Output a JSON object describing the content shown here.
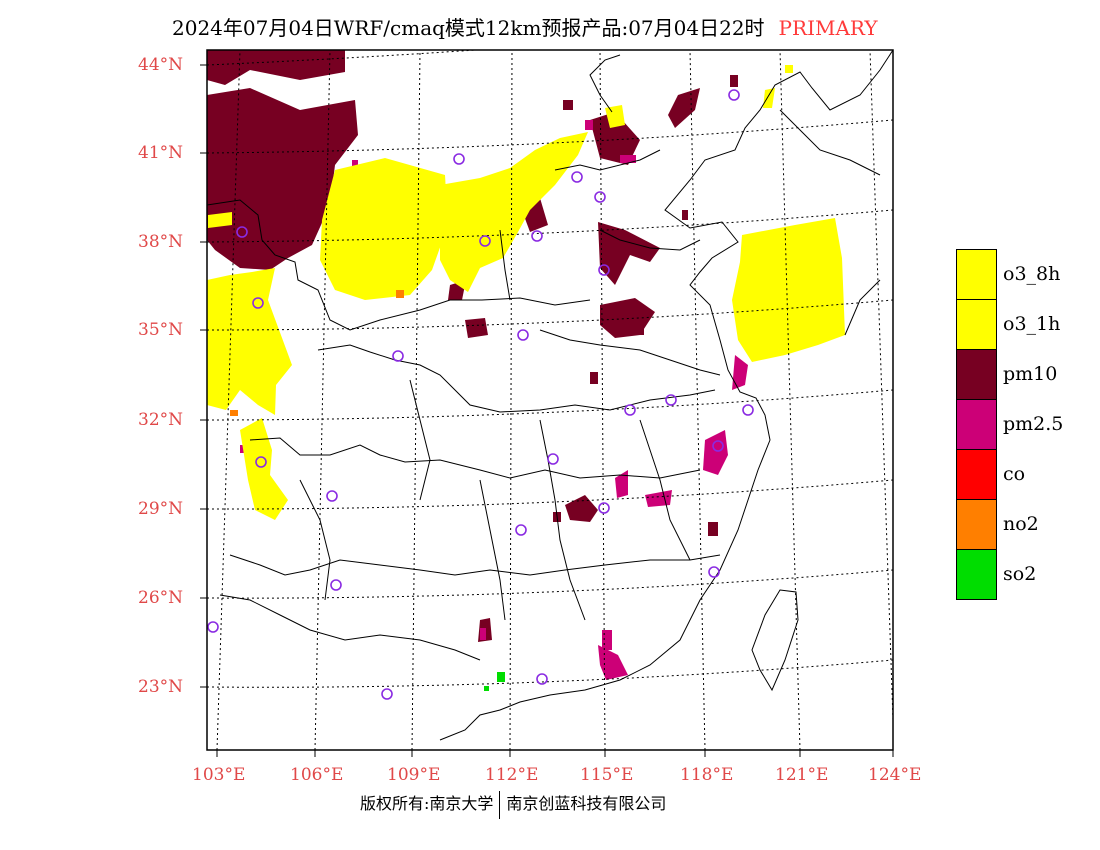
{
  "title": {
    "main": "2024年07月04日WRF/cmaq模式12km预报产品:07月04日22时",
    "tag": "PRIMARY"
  },
  "lat_labels": [
    "44°N",
    "41°N",
    "38°N",
    "35°N",
    "32°N",
    "29°N",
    "26°N",
    "23°N"
  ],
  "lon_labels": [
    "103°E",
    "106°E",
    "109°E",
    "112°E",
    "115°E",
    "118°E",
    "121°E",
    "124°E"
  ],
  "legend": [
    {
      "label": "o3_8h",
      "color": "#ffff00"
    },
    {
      "label": "o3_1h",
      "color": "#ffff00"
    },
    {
      "label": "pm10",
      "color": "#770022"
    },
    {
      "label": "pm2.5",
      "color": "#cc0077"
    },
    {
      "label": "co",
      "color": "#ff0000"
    },
    {
      "label": "no2",
      "color": "#ff7f00"
    },
    {
      "label": "so2",
      "color": "#00dd00"
    }
  ],
  "footer": {
    "left": "版权所有:南京大学",
    "right": "南京创蓝科技有限公司"
  },
  "colors": {
    "pm10": "#770022",
    "pm25": "#cc0077",
    "o3": "#ffff00",
    "no2": "#ff7f00",
    "so2": "#00dd00",
    "station": "#8a2be2",
    "grid": "#000000",
    "tick_label": "#e04848"
  }
}
